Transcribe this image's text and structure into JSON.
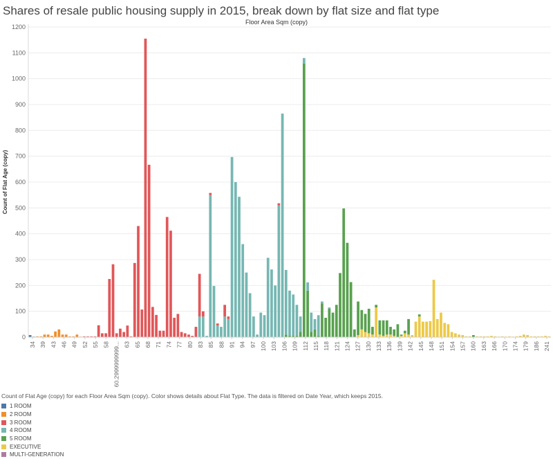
{
  "chart_data": {
    "type": "bar",
    "stacked": true,
    "title": "Shares of resale public housing supply in 2015, break down by flat size and flat type",
    "x_header": "Floor Area Sqm (copy)",
    "ylabel": "Count of Flat Age (copy)",
    "ylim": [
      0,
      1200
    ],
    "yticks": [
      0,
      100,
      200,
      300,
      400,
      500,
      600,
      700,
      800,
      900,
      1000,
      1100,
      1200
    ],
    "grid": "horizontal",
    "x_tick_labels": [
      "34",
      "39",
      "43",
      "46",
      "49",
      "52",
      "55",
      "58",
      "60.2999999999...",
      "63",
      "65",
      "68",
      "71",
      "74",
      "77",
      "80",
      "83",
      "85",
      "88",
      "91",
      "94",
      "97",
      "100",
      "103",
      "106",
      "109",
      "112",
      "115",
      "118",
      "121",
      "124",
      "127",
      "130",
      "133",
      "136",
      "139",
      "142",
      "145",
      "148",
      "151",
      "154",
      "157",
      "160",
      "163",
      "166",
      "170",
      "174",
      "179",
      "186",
      "241"
    ],
    "caption": "Count of Flat Age (copy) for each Floor Area Sqm (copy).  Color shows details about Flat Type. The data is filtered on Date Year, which keeps 2015.",
    "legend": [
      {
        "name": "1 ROOM",
        "color": "#4e79a7"
      },
      {
        "name": "2 ROOM",
        "color": "#f28e2b"
      },
      {
        "name": "3 ROOM",
        "color": "#e15759"
      },
      {
        "name": "4 ROOM",
        "color": "#76b7b2"
      },
      {
        "name": "5 ROOM",
        "color": "#59a14f"
      },
      {
        "name": "EXECUTIVE",
        "color": "#edc948"
      },
      {
        "name": "MULTI-GENERATION",
        "color": "#b07aa1"
      }
    ],
    "bars": [
      {
        "seg": [
          [
            0,
            8
          ]
        ]
      },
      {
        "seg": [
          [
            0,
            2
          ]
        ]
      },
      {
        "seg": [
          [
            1,
            3
          ]
        ]
      },
      {
        "seg": [
          [
            1,
            3
          ]
        ]
      },
      {
        "seg": [
          [
            1,
            10
          ]
        ]
      },
      {
        "seg": [
          [
            1,
            10
          ]
        ]
      },
      {
        "seg": [
          [
            1,
            5
          ]
        ]
      },
      {
        "seg": [
          [
            1,
            22
          ]
        ]
      },
      {
        "seg": [
          [
            1,
            30
          ]
        ]
      },
      {
        "seg": [
          [
            1,
            10
          ]
        ]
      },
      {
        "seg": [
          [
            1,
            10
          ]
        ]
      },
      {
        "seg": [
          [
            1,
            3
          ]
        ]
      },
      {
        "seg": [
          [
            1,
            3
          ]
        ]
      },
      {
        "seg": [
          [
            1,
            10
          ]
        ]
      },
      {
        "seg": [
          [
            1,
            2
          ]
        ]
      },
      {
        "seg": [
          [
            2,
            3
          ]
        ]
      },
      {
        "seg": [
          [
            2,
            3
          ]
        ]
      },
      {
        "seg": [
          [
            2,
            3
          ]
        ]
      },
      {
        "seg": [
          [
            2,
            3
          ]
        ]
      },
      {
        "seg": [
          [
            2,
            46
          ]
        ]
      },
      {
        "seg": [
          [
            2,
            15
          ]
        ]
      },
      {
        "seg": [
          [
            2,
            15
          ]
        ]
      },
      {
        "seg": [
          [
            2,
            225
          ]
        ]
      },
      {
        "seg": [
          [
            2,
            282
          ]
        ]
      },
      {
        "seg": [
          [
            2,
            15
          ]
        ]
      },
      {
        "seg": [
          [
            2,
            33
          ]
        ]
      },
      {
        "seg": [
          [
            2,
            20
          ]
        ]
      },
      {
        "seg": [
          [
            2,
            45
          ]
        ]
      },
      {
        "seg": [
          [
            2,
            3
          ]
        ]
      },
      {
        "seg": [
          [
            2,
            287
          ]
        ]
      },
      {
        "seg": [
          [
            2,
            430
          ]
        ]
      },
      {
        "seg": [
          [
            2,
            107
          ]
        ]
      },
      {
        "seg": [
          [
            2,
            1155
          ]
        ]
      },
      {
        "seg": [
          [
            2,
            667
          ]
        ]
      },
      {
        "seg": [
          [
            2,
            117
          ]
        ]
      },
      {
        "seg": [
          [
            2,
            86
          ]
        ]
      },
      {
        "seg": [
          [
            2,
            25
          ]
        ]
      },
      {
        "seg": [
          [
            2,
            25
          ]
        ]
      },
      {
        "seg": [
          [
            2,
            465
          ]
        ]
      },
      {
        "seg": [
          [
            2,
            412
          ]
        ]
      },
      {
        "seg": [
          [
            2,
            75
          ]
        ]
      },
      {
        "seg": [
          [
            2,
            90
          ]
        ]
      },
      {
        "seg": [
          [
            2,
            20
          ]
        ]
      },
      {
        "seg": [
          [
            2,
            15
          ]
        ]
      },
      {
        "seg": [
          [
            2,
            10
          ]
        ]
      },
      {
        "seg": [
          [
            2,
            5
          ]
        ]
      },
      {
        "seg": [
          [
            2,
            40
          ]
        ]
      },
      {
        "seg": [
          [
            3,
            80
          ],
          [
            2,
            165
          ]
        ]
      },
      {
        "seg": [
          [
            3,
            80
          ],
          [
            2,
            20
          ]
        ]
      },
      {
        "seg": [
          [
            3,
            5
          ]
        ]
      },
      {
        "seg": [
          [
            3,
            550
          ],
          [
            2,
            8
          ]
        ]
      },
      {
        "seg": [
          [
            3,
            198
          ]
        ]
      },
      {
        "seg": [
          [
            3,
            45
          ],
          [
            2,
            8
          ]
        ]
      },
      {
        "seg": [
          [
            3,
            40
          ]
        ]
      },
      {
        "seg": [
          [
            3,
            80
          ],
          [
            2,
            45
          ]
        ]
      },
      {
        "seg": [
          [
            3,
            70
          ],
          [
            2,
            10
          ]
        ]
      },
      {
        "seg": [
          [
            3,
            697
          ]
        ]
      },
      {
        "seg": [
          [
            3,
            600
          ]
        ]
      },
      {
        "seg": [
          [
            3,
            543
          ]
        ]
      },
      {
        "seg": [
          [
            3,
            360
          ]
        ]
      },
      {
        "seg": [
          [
            3,
            250
          ]
        ]
      },
      {
        "seg": [
          [
            3,
            170
          ]
        ]
      },
      {
        "seg": [
          [
            3,
            80
          ]
        ]
      },
      {
        "seg": [
          [
            3,
            10
          ]
        ]
      },
      {
        "seg": [
          [
            3,
            95
          ]
        ]
      },
      {
        "seg": [
          [
            3,
            85
          ]
        ]
      },
      {
        "seg": [
          [
            3,
            307
          ]
        ]
      },
      {
        "seg": [
          [
            3,
            262
          ]
        ]
      },
      {
        "seg": [
          [
            3,
            200
          ]
        ]
      },
      {
        "seg": [
          [
            3,
            510
          ],
          [
            2,
            8
          ]
        ]
      },
      {
        "seg": [
          [
            3,
            865
          ]
        ]
      },
      {
        "seg": [
          [
            4,
            10
          ],
          [
            3,
            250
          ]
        ]
      },
      {
        "seg": [
          [
            4,
            5
          ],
          [
            3,
            175
          ]
        ]
      },
      {
        "seg": [
          [
            4,
            5
          ],
          [
            3,
            160
          ]
        ]
      },
      {
        "seg": [
          [
            4,
            5
          ],
          [
            3,
            120
          ]
        ]
      },
      {
        "seg": [
          [
            4,
            20
          ],
          [
            3,
            60
          ]
        ]
      },
      {
        "seg": [
          [
            4,
            1058
          ],
          [
            3,
            22
          ]
        ]
      },
      {
        "seg": [
          [
            4,
            180
          ],
          [
            3,
            32
          ]
        ]
      },
      {
        "seg": [
          [
            4,
            20
          ],
          [
            3,
            75
          ]
        ]
      },
      {
        "seg": [
          [
            4,
            30
          ],
          [
            3,
            40
          ]
        ]
      },
      {
        "seg": [
          [
            4,
            5
          ],
          [
            3,
            80
          ]
        ]
      },
      {
        "seg": [
          [
            4,
            130
          ],
          [
            3,
            8
          ]
        ]
      },
      {
        "seg": [
          [
            4,
            75
          ]
        ]
      },
      {
        "seg": [
          [
            4,
            110
          ],
          [
            3,
            5
          ]
        ]
      },
      {
        "seg": [
          [
            4,
            95
          ]
        ]
      },
      {
        "seg": [
          [
            4,
            125
          ]
        ]
      },
      {
        "seg": [
          [
            4,
            248
          ]
        ]
      },
      {
        "seg": [
          [
            4,
            498
          ]
        ]
      },
      {
        "seg": [
          [
            4,
            365
          ]
        ]
      },
      {
        "seg": [
          [
            4,
            213
          ]
        ]
      },
      {
        "seg": [
          [
            4,
            30
          ]
        ]
      },
      {
        "seg": [
          [
            5,
            8
          ],
          [
            4,
            130
          ]
        ]
      },
      {
        "seg": [
          [
            5,
            30
          ],
          [
            4,
            75
          ]
        ]
      },
      {
        "seg": [
          [
            5,
            20
          ],
          [
            4,
            70
          ]
        ]
      },
      {
        "seg": [
          [
            5,
            15
          ],
          [
            4,
            95
          ]
        ]
      },
      {
        "seg": [
          [
            5,
            10
          ],
          [
            4,
            30
          ]
        ]
      },
      {
        "seg": [
          [
            5,
            115
          ],
          [
            4,
            10
          ]
        ]
      },
      {
        "seg": [
          [
            5,
            10
          ],
          [
            4,
            55
          ]
        ]
      },
      {
        "seg": [
          [
            5,
            5
          ],
          [
            4,
            60
          ]
        ]
      },
      {
        "seg": [
          [
            5,
            10
          ],
          [
            4,
            55
          ]
        ]
      },
      {
        "seg": [
          [
            5,
            10
          ],
          [
            4,
            30
          ]
        ]
      },
      {
        "seg": [
          [
            5,
            5
          ],
          [
            4,
            25
          ]
        ]
      },
      {
        "seg": [
          [
            4,
            50
          ]
        ]
      },
      {
        "seg": [
          [
            5,
            5
          ],
          [
            4,
            5
          ]
        ]
      },
      {
        "seg": [
          [
            5,
            15
          ],
          [
            4,
            10
          ]
        ]
      },
      {
        "seg": [
          [
            5,
            10
          ],
          [
            4,
            60
          ]
        ]
      },
      {
        "seg": [
          [
            5,
            8
          ]
        ]
      },
      {
        "seg": [
          [
            5,
            60
          ]
        ]
      },
      {
        "seg": [
          [
            5,
            80
          ],
          [
            4,
            8
          ]
        ]
      },
      {
        "seg": [
          [
            5,
            60
          ]
        ]
      },
      {
        "seg": [
          [
            5,
            60
          ]
        ]
      },
      {
        "seg": [
          [
            5,
            62
          ]
        ]
      },
      {
        "seg": [
          [
            5,
            222
          ]
        ]
      },
      {
        "seg": [
          [
            5,
            70
          ]
        ]
      },
      {
        "seg": [
          [
            5,
            95
          ]
        ]
      },
      {
        "seg": [
          [
            5,
            55
          ]
        ]
      },
      {
        "seg": [
          [
            5,
            50
          ]
        ]
      },
      {
        "seg": [
          [
            5,
            20
          ]
        ]
      },
      {
        "seg": [
          [
            5,
            15
          ]
        ]
      },
      {
        "seg": [
          [
            5,
            10
          ]
        ]
      },
      {
        "seg": [
          [
            5,
            8
          ]
        ]
      },
      {
        "seg": [
          [
            5,
            3
          ]
        ]
      },
      {
        "seg": [
          [
            5,
            3
          ]
        ]
      },
      {
        "seg": [
          [
            4,
            8
          ]
        ]
      },
      {
        "seg": [
          [
            5,
            3
          ]
        ]
      },
      {
        "seg": [
          [
            5,
            3
          ]
        ]
      },
      {
        "seg": [
          [
            5,
            3
          ]
        ]
      },
      {
        "seg": [
          [
            5,
            3
          ]
        ]
      },
      {
        "seg": [
          [
            5,
            5
          ]
        ]
      },
      {
        "seg": [
          [
            5,
            3
          ]
        ]
      },
      {
        "seg": [
          [
            5,
            2
          ]
        ]
      },
      {
        "seg": [
          [
            5,
            3
          ]
        ]
      },
      {
        "seg": [
          [
            5,
            2
          ]
        ]
      },
      {
        "seg": [
          [
            5,
            3
          ]
        ]
      },
      {
        "seg": [
          [
            5,
            2
          ]
        ]
      },
      {
        "seg": [
          [
            5,
            3
          ]
        ]
      },
      {
        "seg": [
          [
            5,
            5
          ]
        ]
      },
      {
        "seg": [
          [
            5,
            10
          ]
        ]
      },
      {
        "seg": [
          [
            5,
            8
          ]
        ]
      },
      {
        "seg": [
          [
            5,
            3
          ]
        ]
      },
      {
        "seg": [
          [
            5,
            3
          ]
        ]
      },
      {
        "seg": [
          [
            5,
            3
          ]
        ]
      },
      {
        "seg": [
          [
            5,
            3
          ]
        ]
      },
      {
        "seg": [
          [
            5,
            5
          ]
        ]
      },
      {
        "seg": [
          [
            5,
            3
          ]
        ]
      }
    ]
  }
}
